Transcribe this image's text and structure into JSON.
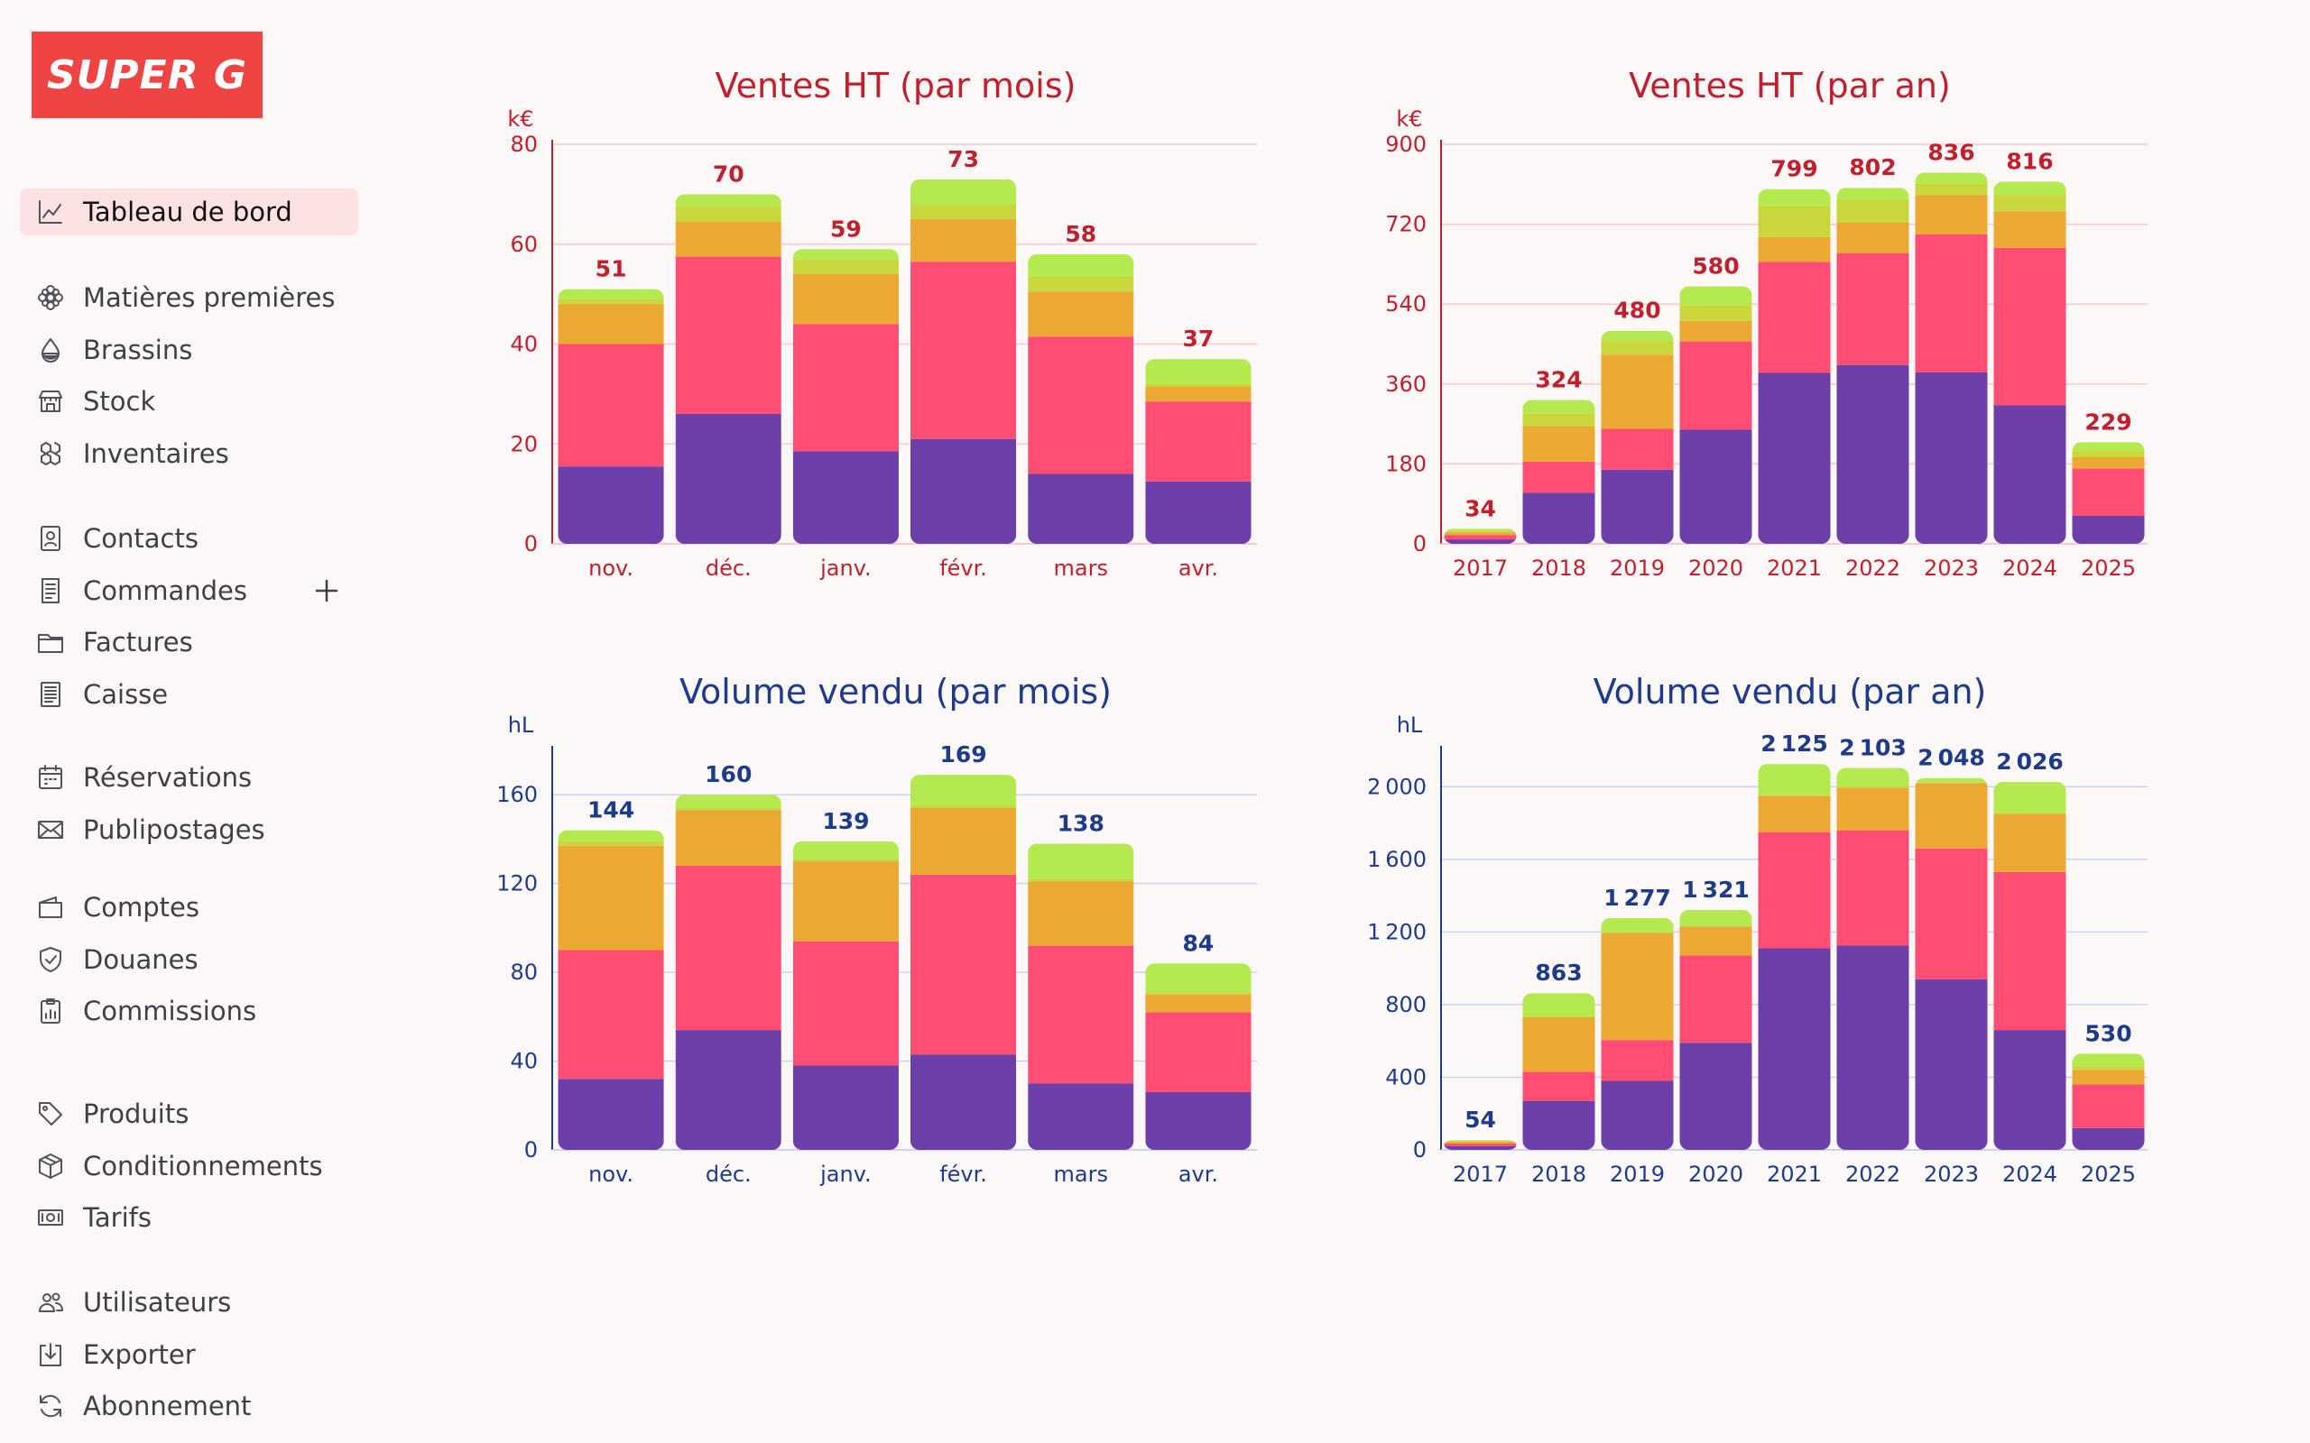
{
  "brand": {
    "logo_text": "SUPER G",
    "color": "#ef4444"
  },
  "sidebar": {
    "groups": [
      [
        {
          "key": "dashboard",
          "label": "Tableau de bord",
          "icon": "chart-line-icon",
          "active": true
        }
      ],
      [
        {
          "key": "raw",
          "label": "Matières premières",
          "icon": "hops-icon"
        },
        {
          "key": "brews",
          "label": "Brassins",
          "icon": "drop-icon"
        },
        {
          "key": "stock",
          "label": "Stock",
          "icon": "store-icon"
        },
        {
          "key": "inventory",
          "label": "Inventaires",
          "icon": "boxes-icon"
        }
      ],
      [
        {
          "key": "contacts",
          "label": "Contacts",
          "icon": "contact-card-icon"
        },
        {
          "key": "orders",
          "label": "Commandes",
          "icon": "list-doc-icon",
          "add": true
        },
        {
          "key": "invoices",
          "label": "Factures",
          "icon": "folder-icon"
        },
        {
          "key": "cash",
          "label": "Caisse",
          "icon": "receipt-icon"
        }
      ],
      [
        {
          "key": "reservations",
          "label": "Réservations",
          "icon": "calendar-icon"
        },
        {
          "key": "mailings",
          "label": "Publipostages",
          "icon": "mail-icon"
        }
      ],
      [
        {
          "key": "accounts",
          "label": "Comptes",
          "icon": "wallet-icon"
        },
        {
          "key": "customs",
          "label": "Douanes",
          "icon": "shield-check-icon"
        },
        {
          "key": "commissions",
          "label": "Commissions",
          "icon": "clipboard-chart-icon"
        }
      ],
      [
        {
          "key": "products",
          "label": "Produits",
          "icon": "tag-icon"
        },
        {
          "key": "packaging",
          "label": "Conditionnements",
          "icon": "package-icon"
        },
        {
          "key": "prices",
          "label": "Tarifs",
          "icon": "banknote-icon"
        }
      ],
      [
        {
          "key": "users",
          "label": "Utilisateurs",
          "icon": "users-icon"
        },
        {
          "key": "export",
          "label": "Exporter",
          "icon": "download-icon"
        },
        {
          "key": "subscription",
          "label": "Abonnement",
          "icon": "refresh-icon"
        }
      ]
    ]
  },
  "segment_colors": [
    "#6d3fa8",
    "#ff4d74",
    "#eba833",
    "#cad73c",
    "#b4e94f"
  ],
  "chart_data": [
    {
      "type": "bar",
      "stacked": true,
      "title": "Ventes HT (par mois)",
      "ylabel": "k€",
      "ylim": [
        0,
        80
      ],
      "yticks": [
        0,
        20,
        40,
        60,
        80
      ],
      "theme": "#c01f2e",
      "grid": "#f7c9cf",
      "categories": [
        "nov.",
        "déc.",
        "janv.",
        "févr.",
        "mars",
        "avr."
      ],
      "totals": [
        51,
        70,
        59,
        73,
        58,
        37
      ],
      "segments": [
        [
          15.5,
          24.5,
          8,
          1,
          2
        ],
        [
          26,
          31.5,
          7,
          3,
          2.5
        ],
        [
          18.5,
          25.5,
          10,
          3,
          2
        ],
        [
          21,
          35.5,
          8.5,
          3,
          5
        ],
        [
          14,
          27.5,
          9,
          3,
          4.5
        ],
        [
          12.5,
          16,
          3,
          0.5,
          5
        ]
      ]
    },
    {
      "type": "bar",
      "stacked": true,
      "title": "Ventes HT (par an)",
      "ylabel": "k€",
      "ylim": [
        0,
        900
      ],
      "yticks": [
        0,
        180,
        360,
        540,
        720,
        900
      ],
      "theme": "#c01f2e",
      "grid": "#f7c9cf",
      "categories": [
        "2017",
        "2018",
        "2019",
        "2020",
        "2021",
        "2022",
        "2023",
        "2024",
        "2025"
      ],
      "totals": [
        34,
        324,
        480,
        580,
        799,
        802,
        836,
        816,
        229
      ],
      "segments": [
        [
          10,
          10,
          6,
          4,
          4
        ],
        [
          115,
          70,
          80,
          29,
          30
        ],
        [
          167,
          92,
          167,
          30,
          24
        ],
        [
          257,
          199,
          46,
          36,
          42
        ],
        [
          385,
          250,
          56,
          70,
          38
        ],
        [
          403,
          252,
          69,
          50,
          28
        ],
        [
          386,
          311,
          89,
          25,
          25
        ],
        [
          312,
          355,
          82,
          37,
          30
        ],
        [
          63,
          107,
          25,
          14,
          20
        ]
      ]
    },
    {
      "type": "bar",
      "stacked": true,
      "title": "Volume vendu (par mois)",
      "ylabel": "hL",
      "ylim": [
        0,
        180
      ],
      "yticks": [
        0,
        40,
        80,
        120,
        160
      ],
      "theme": "#1e3a8a",
      "grid": "#c9d4f2",
      "categories": [
        "nov.",
        "déc.",
        "janv.",
        "févr.",
        "mars",
        "avr."
      ],
      "totals": [
        144,
        160,
        139,
        169,
        138,
        84
      ],
      "segments": [
        [
          32,
          58,
          47,
          2,
          5
        ],
        [
          54,
          74,
          25,
          1,
          6
        ],
        [
          38,
          56,
          36,
          1,
          8
        ],
        [
          43,
          81,
          30,
          1,
          14
        ],
        [
          30,
          62,
          29,
          1,
          16
        ],
        [
          26,
          36,
          8,
          1,
          13
        ]
      ]
    },
    {
      "type": "bar",
      "stacked": true,
      "title": "Volume vendu (par an)",
      "ylabel": "hL",
      "ylim": [
        0,
        2200
      ],
      "yticks": [
        0,
        400,
        800,
        1200,
        1600,
        2000
      ],
      "theme": "#1e3a8a",
      "grid": "#c9d4f2",
      "categories": [
        "2017",
        "2018",
        "2019",
        "2020",
        "2021",
        "2022",
        "2023",
        "2024",
        "2025"
      ],
      "totals": [
        54,
        863,
        1277,
        1321,
        2125,
        2103,
        2048,
        2026,
        530
      ],
      "segments": [
        [
          20,
          15,
          10,
          4,
          5
        ],
        [
          270,
          160,
          300,
          5,
          128
        ],
        [
          380,
          225,
          590,
          2,
          80
        ],
        [
          590,
          480,
          160,
          1,
          90
        ],
        [
          1110,
          640,
          200,
          5,
          170
        ],
        [
          1125,
          635,
          235,
          5,
          103
        ],
        [
          940,
          720,
          360,
          2,
          26
        ],
        [
          660,
          870,
          320,
          6,
          170
        ],
        [
          120,
          240,
          80,
          20,
          70
        ]
      ]
    }
  ]
}
